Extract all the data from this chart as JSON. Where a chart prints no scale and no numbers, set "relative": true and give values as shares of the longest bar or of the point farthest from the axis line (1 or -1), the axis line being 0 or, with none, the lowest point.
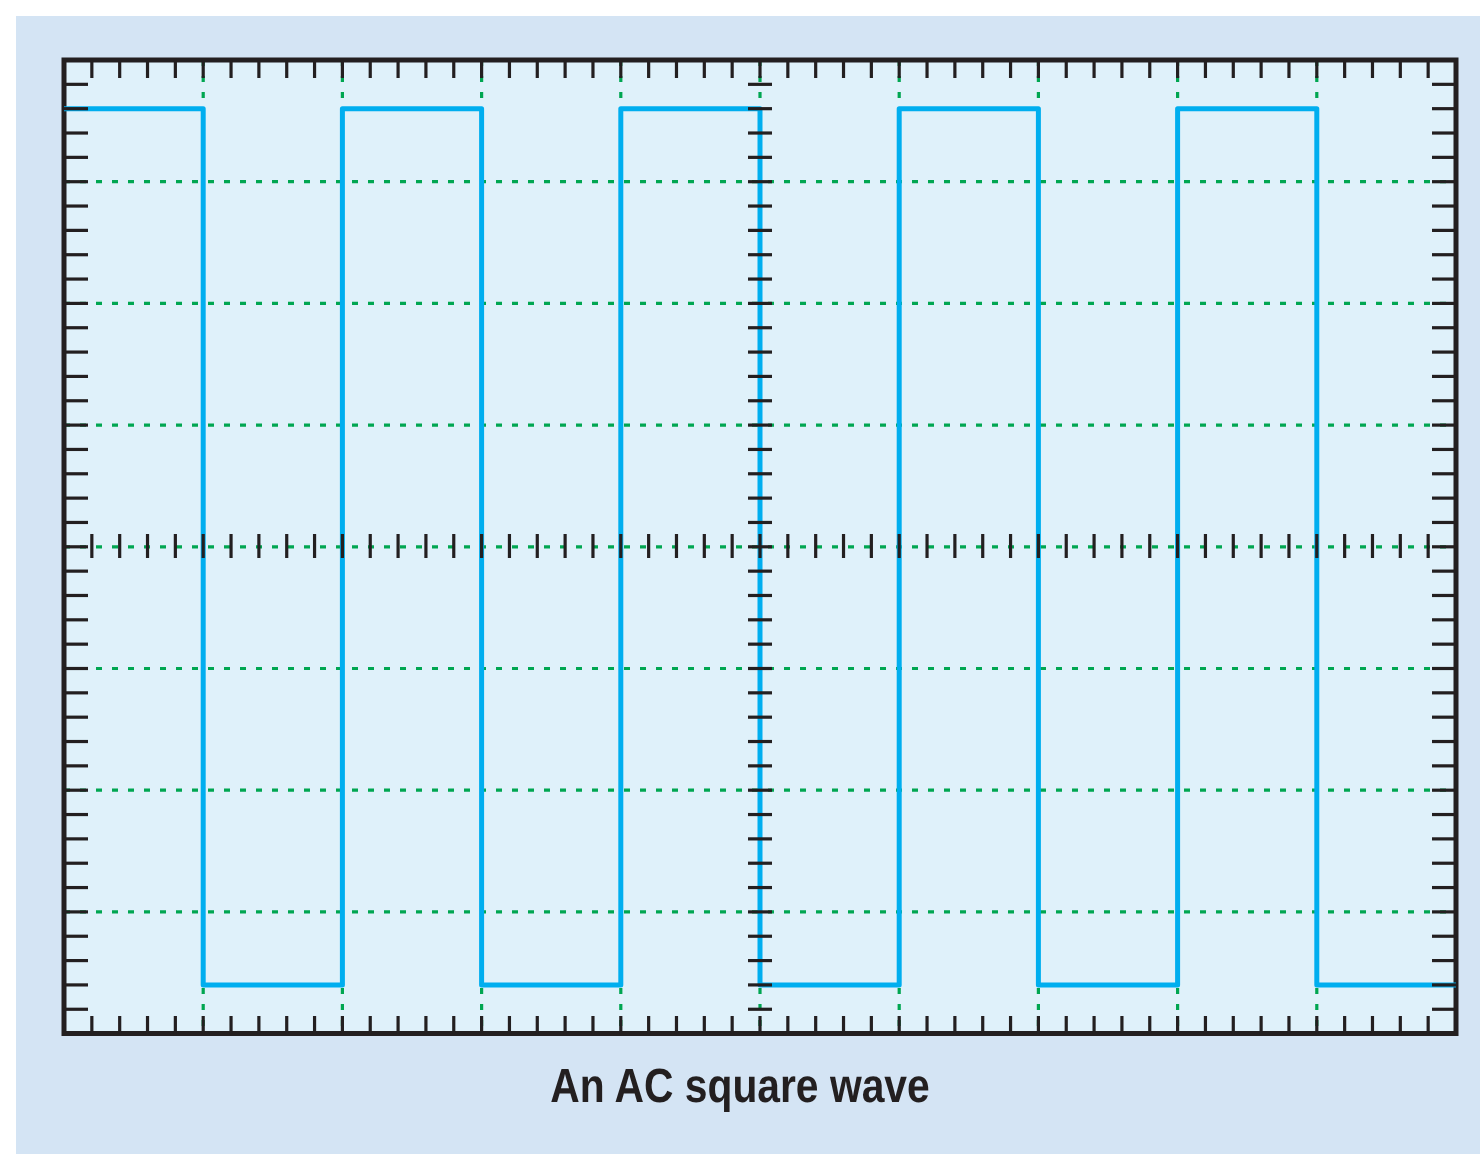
{
  "chart_data": {
    "type": "step",
    "title": "An AC square wave",
    "relative": true,
    "grid": true,
    "marker": "none",
    "line_style": "solid",
    "categories": [
      null,
      null,
      null,
      null,
      null,
      null,
      null,
      null,
      null,
      null,
      null
    ],
    "series": [
      {
        "color": "#00aeef",
        "values": [
          1,
          -1,
          1,
          -1,
          1,
          -1,
          1,
          -1,
          1,
          -1,
          -1
        ]
      }
    ]
  }
}
